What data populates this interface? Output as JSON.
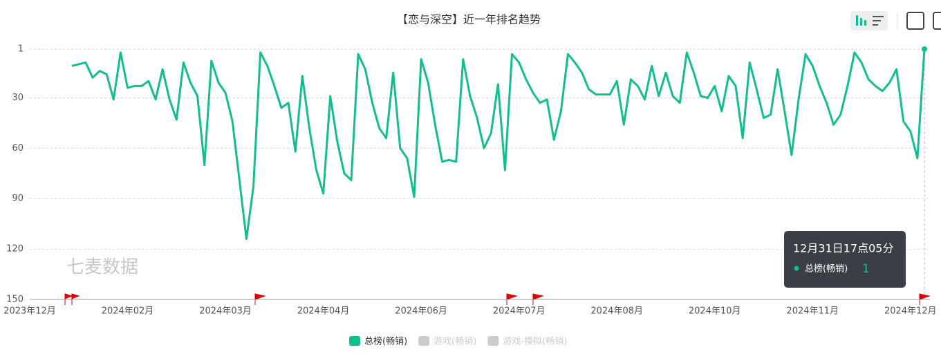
{
  "chart_data": {
    "type": "line",
    "title": "【恋与深空】近一年排名趋势",
    "watermark": "七麦数据",
    "categories": [
      "2023年12月",
      null,
      null,
      null,
      null,
      null,
      null,
      null,
      null,
      null,
      null,
      null,
      null,
      null,
      "2024年02月",
      null,
      null,
      null,
      null,
      null,
      null,
      null,
      null,
      null,
      null,
      null,
      null,
      null,
      "2024年03月",
      null,
      null,
      null,
      null,
      null,
      null,
      null,
      null,
      null,
      null,
      null,
      null,
      null,
      "2024年04月",
      null,
      null,
      null,
      null,
      null,
      null,
      null,
      null,
      null,
      null,
      null,
      null,
      null,
      "2024年06月",
      null,
      null,
      null,
      null,
      null,
      null,
      null,
      null,
      null,
      null,
      null,
      null,
      null,
      "2024年07月",
      null,
      null,
      null,
      null,
      null,
      null,
      null,
      null,
      null,
      null,
      null,
      null,
      null,
      "2024年08月",
      null,
      null,
      null,
      null,
      null,
      null,
      null,
      null,
      null,
      null,
      null,
      null,
      null,
      "2024年10月",
      null,
      null,
      null,
      null,
      null,
      null,
      null,
      null,
      null,
      null,
      null,
      null,
      null,
      "2024年11月",
      null,
      null,
      null,
      null,
      null,
      null,
      null,
      null,
      null,
      null,
      null,
      null,
      null,
      "2024年12月",
      null,
      null
    ],
    "series": [
      {
        "name": "总榜(畅销)",
        "color": "#11bf8e",
        "values": [
          null,
          null,
          null,
          null,
          null,
          null,
          11,
          10,
          9,
          18,
          14,
          16,
          31,
          3,
          24,
          23,
          23,
          20,
          31,
          13,
          31,
          43,
          9,
          21,
          29,
          70,
          8,
          21,
          27,
          44,
          79,
          114,
          83,
          3,
          11,
          23,
          36,
          33,
          62,
          17,
          48,
          73,
          87,
          29,
          56,
          75,
          79,
          4,
          13,
          33,
          48,
          54,
          15,
          60,
          66,
          89,
          7,
          21,
          46,
          68,
          67,
          68,
          7,
          29,
          42,
          60,
          51,
          22,
          73,
          4,
          9,
          19,
          27,
          33,
          31,
          55,
          38,
          4,
          9,
          15,
          25,
          28,
          28,
          28,
          20,
          46,
          19,
          23,
          31,
          11,
          29,
          15,
          29,
          33,
          3,
          15,
          29,
          30,
          23,
          38,
          17,
          23,
          54,
          9,
          25,
          42,
          40,
          13,
          38,
          64,
          31,
          4,
          11,
          23,
          33,
          46,
          40,
          23,
          3,
          9,
          19,
          23,
          26,
          21,
          13,
          44,
          50,
          66,
          1
        ]
      },
      {
        "name": "游戏(畅销)",
        "color": "#cccccc",
        "hidden": true
      },
      {
        "name": "游戏-模拟(畅销)",
        "color": "#cccccc",
        "hidden": true
      }
    ],
    "ylim": [
      150,
      1
    ],
    "yticks": [
      1,
      30,
      60,
      90,
      120,
      150
    ],
    "grid": true,
    "tooltip": {
      "title": "12月31日17点05分"
    }
  }
}
